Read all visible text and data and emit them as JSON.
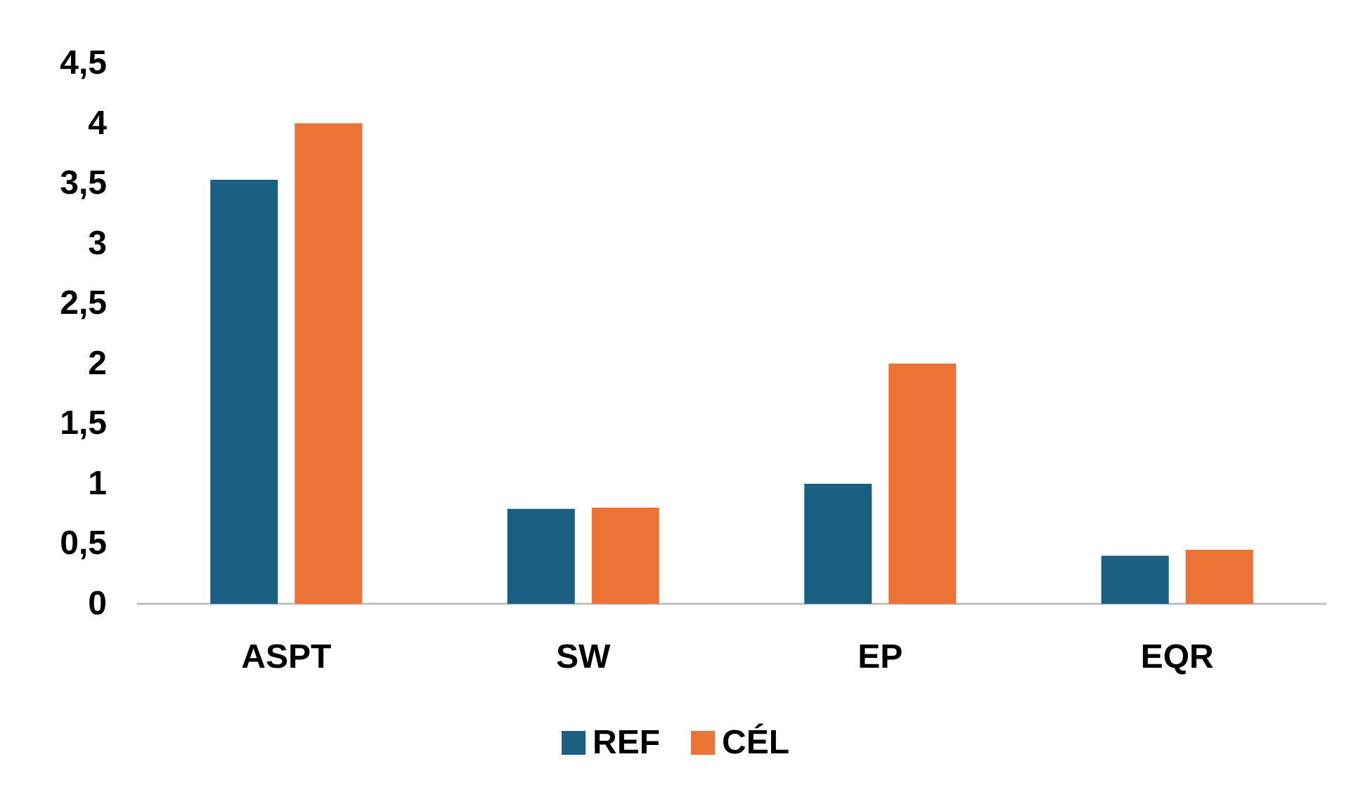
{
  "chart_data": {
    "type": "bar",
    "categories": [
      "ASPT",
      "SW",
      "EP",
      "EQR"
    ],
    "series": [
      {
        "name": "REF",
        "color": "#1b6083",
        "values": [
          3.53,
          0.79,
          1.0,
          0.4
        ]
      },
      {
        "name": "CÉL",
        "color": "#eb7336",
        "values": [
          4.0,
          0.8,
          2.0,
          0.45
        ]
      }
    ],
    "ylim": [
      0,
      4.5
    ],
    "yticks": [
      {
        "value": 0,
        "label": "0"
      },
      {
        "value": 0.5,
        "label": "0,5"
      },
      {
        "value": 1,
        "label": "1"
      },
      {
        "value": 1.5,
        "label": "1,5"
      },
      {
        "value": 2,
        "label": "2"
      },
      {
        "value": 2.5,
        "label": "2,5"
      },
      {
        "value": 3,
        "label": "3"
      },
      {
        "value": 3.5,
        "label": "3,5"
      },
      {
        "value": 4,
        "label": "4"
      },
      {
        "value": 4.5,
        "label": "4,5"
      }
    ],
    "grid": false,
    "legend": "bottom"
  }
}
